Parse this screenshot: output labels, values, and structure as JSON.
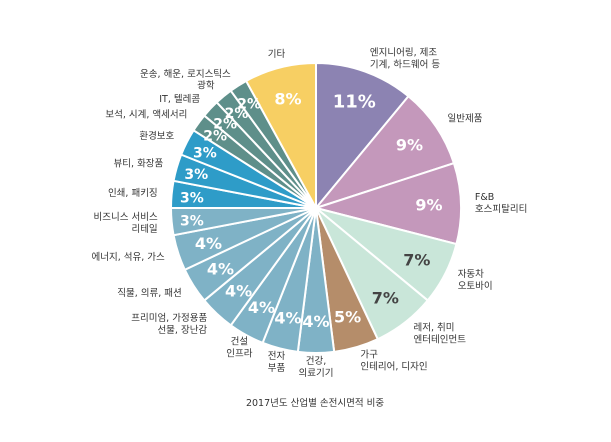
{
  "chart_data": {
    "type": "pie",
    "caption": "2017년도 산업별 손전시면적 비중",
    "slices": [
      {
        "label": "엔지니어링, 제조\n기계, 하드웨어 등",
        "value": 11,
        "display": "11%",
        "color": "#8c83b2",
        "text": "light"
      },
      {
        "label": "일반제품",
        "value": 9,
        "display": "9%",
        "color": "#c498bb",
        "text": "light"
      },
      {
        "label": "F&B\n호스피탈리티",
        "value": 9,
        "display": "9%",
        "color": "#c498bb",
        "text": "light"
      },
      {
        "label": "자동차\n오토바이",
        "value": 7,
        "display": "7%",
        "color": "#c9e6d9",
        "text": "dark"
      },
      {
        "label": "레저, 취미\n엔터테인먼트",
        "value": 7,
        "display": "7%",
        "color": "#c9e6d9",
        "text": "dark"
      },
      {
        "label": "가구\n인테리어, 디자인",
        "value": 5,
        "display": "5%",
        "color": "#b58d6a",
        "text": "light"
      },
      {
        "label": "건강,\n의료기기",
        "value": 4,
        "display": "4%",
        "color": "#7fb2c6",
        "text": "light"
      },
      {
        "label": "전자\n부품",
        "value": 4,
        "display": "4%",
        "color": "#7fb2c6",
        "text": "light"
      },
      {
        "label": "건설\n인프라",
        "value": 4,
        "display": "4%",
        "color": "#7fb2c6",
        "text": "light"
      },
      {
        "label": "프리미엄, 가정용품\n선물, 장난감",
        "value": 4,
        "display": "4%",
        "color": "#7fb2c6",
        "text": "light"
      },
      {
        "label": "직물, 의류, 패션",
        "value": 4,
        "display": "4%",
        "color": "#7fb2c6",
        "text": "light"
      },
      {
        "label": "에너지, 석유, 가스",
        "value": 4,
        "display": "4%",
        "color": "#7fb2c6",
        "text": "light"
      },
      {
        "label": "비즈니스 서비스\n리테일",
        "value": 3,
        "display": "3%",
        "color": "#7fb2c6",
        "text": "light"
      },
      {
        "label": "인쇄, 패키징",
        "value": 3,
        "display": "3%",
        "color": "#2e9cc8",
        "text": "light"
      },
      {
        "label": "뷰티, 화장품",
        "value": 3,
        "display": "3%",
        "color": "#2e9cc8",
        "text": "light"
      },
      {
        "label": "환경보호",
        "value": 3,
        "display": "3%",
        "color": "#2e9cc8",
        "text": "light"
      },
      {
        "label": "보석, 시계, 액세서리",
        "value": 2,
        "display": "2%",
        "color": "#5e8f8a",
        "text": "light"
      },
      {
        "label": "IT, 텔레콤",
        "value": 2,
        "display": "2%",
        "color": "#5e8f8a",
        "text": "light"
      },
      {
        "label": "광학",
        "value": 2,
        "display": "2%",
        "color": "#5e8f8a",
        "text": "light"
      },
      {
        "label": "운송, 해운, 로지스틱스",
        "value": 2,
        "display": "2%",
        "color": "#5e8f8a",
        "text": "light"
      },
      {
        "label": "기타",
        "value": 8,
        "display": "8%",
        "color": "#f7cf63",
        "text": "light"
      }
    ]
  }
}
